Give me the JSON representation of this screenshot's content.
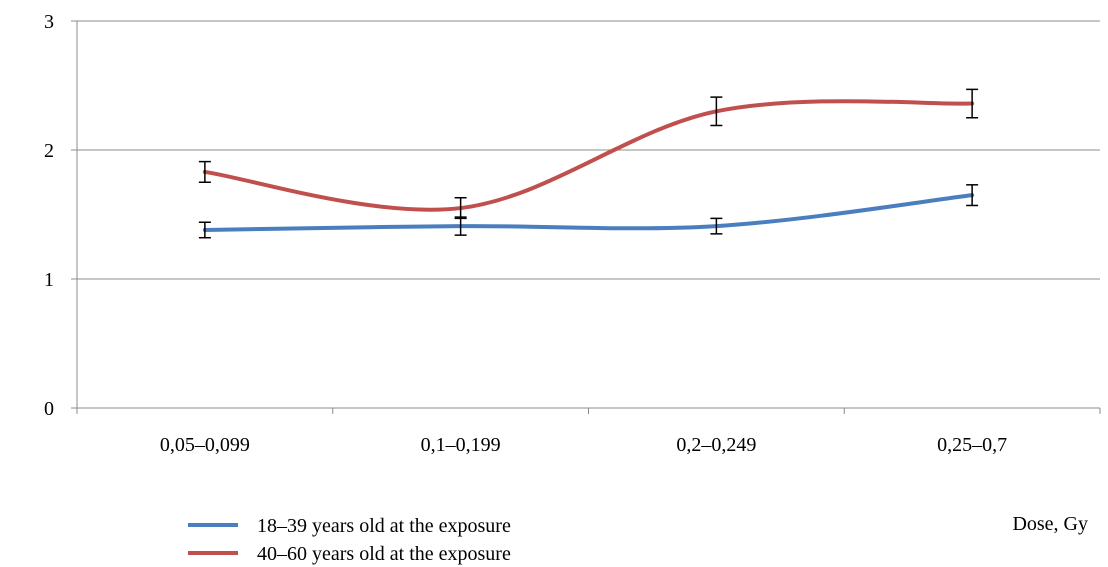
{
  "chart_data": {
    "type": "line",
    "categories": [
      "0,05–0,099",
      "0,1–0,199",
      "0,2–0,249",
      "0,25–0,7"
    ],
    "series": [
      {
        "name": "18–39 years old at the exposure",
        "color": "#4a7ebf",
        "values": [
          1.38,
          1.41,
          1.41,
          1.65
        ],
        "error": [
          0.06,
          0.07,
          0.06,
          0.08
        ]
      },
      {
        "name": "40–60 years old at the exposure",
        "color": "#c0504d",
        "values": [
          1.83,
          1.55,
          2.3,
          2.36
        ],
        "error": [
          0.08,
          0.08,
          0.11,
          0.11
        ]
      }
    ],
    "yticks": [
      "0",
      "1",
      "2",
      "3"
    ],
    "ylim": [
      0,
      3
    ],
    "xlabel": "Dose, Gy",
    "ylabel": "",
    "grid": true,
    "legend_position": "bottom-left"
  }
}
